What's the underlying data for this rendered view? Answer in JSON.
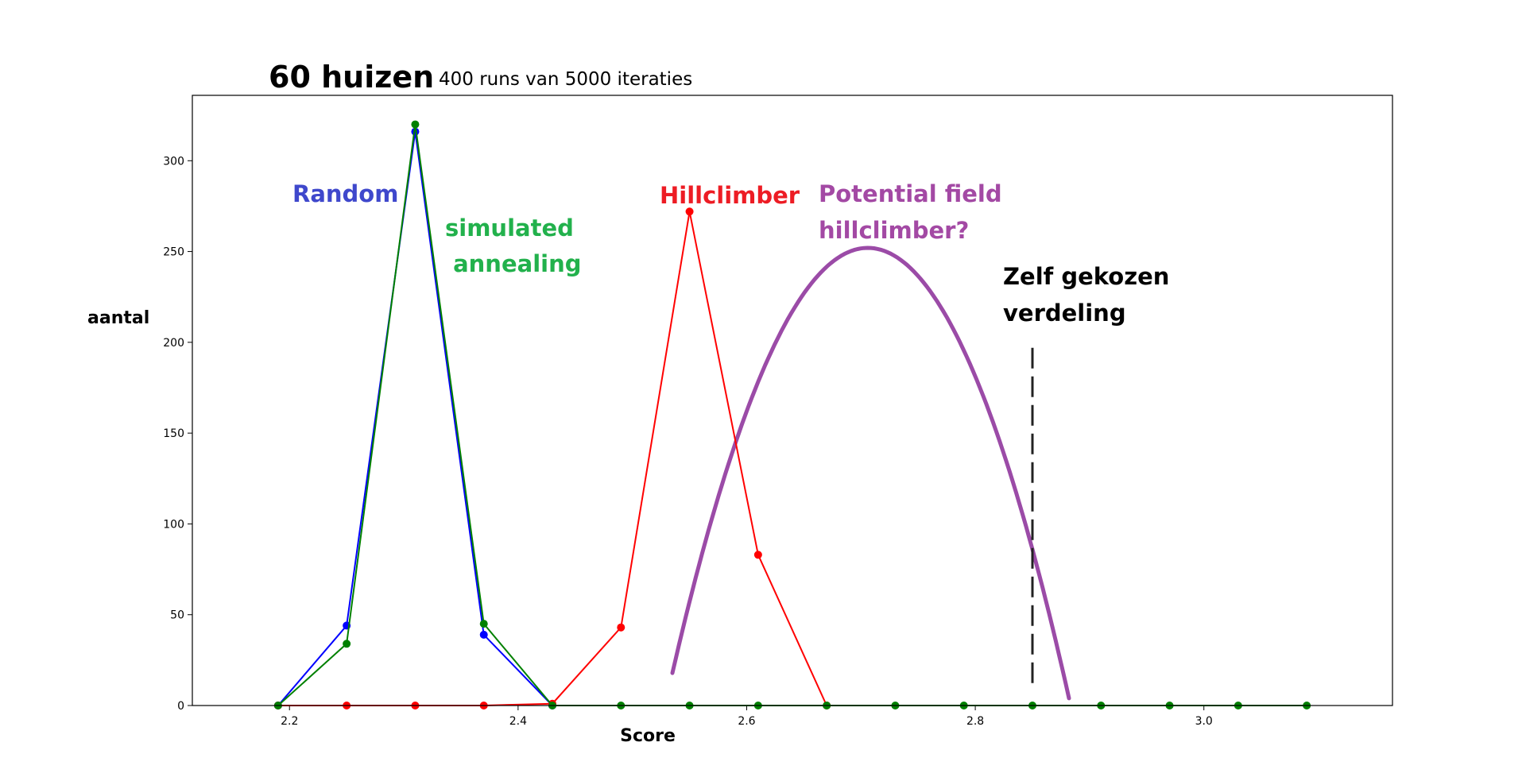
{
  "chart_data": {
    "type": "line",
    "title": "60 huizen",
    "subtitle": "400 runs van 5000 iteraties",
    "xlabel": "Score",
    "ylabel": "aantal",
    "xlim": [
      2.115,
      3.165
    ],
    "ylim": [
      0,
      336
    ],
    "xticks": [
      2.2,
      2.4,
      2.6,
      2.8,
      3.0
    ],
    "xtick_labels": [
      "2.2",
      "2.4",
      "2.6",
      "2.8",
      "3.0"
    ],
    "yticks": [
      0,
      50,
      100,
      150,
      200,
      250,
      300
    ],
    "ytick_labels": [
      "0",
      "50",
      "100",
      "150",
      "200",
      "250",
      "300"
    ],
    "grid": false,
    "series": [
      {
        "name": "Random",
        "color": "#0000ff",
        "x": [
          2.19,
          2.25,
          2.31,
          2.37,
          2.43
        ],
        "y": [
          0,
          44,
          316,
          39,
          0
        ]
      },
      {
        "name": "Hillclimber",
        "color": "#ff0000",
        "x": [
          2.19,
          2.25,
          2.31,
          2.37,
          2.43,
          2.49,
          2.55,
          2.61,
          2.67
        ],
        "y": [
          0,
          0,
          0,
          0,
          1,
          43,
          272,
          83,
          0
        ]
      },
      {
        "name": "simulated annealing",
        "color": "#008000",
        "x": [
          2.19,
          2.25,
          2.31,
          2.37,
          2.43,
          2.49,
          2.55,
          2.61,
          2.67,
          2.73,
          2.79,
          2.85,
          2.91,
          2.97,
          3.03,
          3.09
        ],
        "y": [
          0,
          34,
          320,
          45,
          0,
          0,
          0,
          0,
          0,
          0,
          0,
          0,
          0,
          0,
          0,
          0
        ]
      }
    ],
    "curve": {
      "name": "Potential field hillclimber?",
      "color": "#9b4ba7",
      "peak_x": 2.706,
      "peak_y": 252,
      "x_start": 2.535,
      "x_end": 2.882,
      "end_y": 4
    },
    "marker_line": {
      "name": "Zelf gekozen verdeling",
      "x": 2.85,
      "y_top": 197,
      "y_bottom": 9,
      "color": "#222222"
    },
    "annotations": [
      {
        "lines": [
          "Random"
        ],
        "color": "#3f48cc"
      },
      {
        "lines": [
          "simulated",
          " annealing"
        ],
        "color": "#22b14c"
      },
      {
        "lines": [
          "Hillclimber"
        ],
        "color": "#ed1c24"
      },
      {
        "lines": [
          "Potential field",
          "hillclimber?"
        ],
        "color": "#a349a4"
      },
      {
        "lines": [
          "Zelf gekozen",
          "verdeling"
        ],
        "color": "#000000"
      }
    ]
  }
}
